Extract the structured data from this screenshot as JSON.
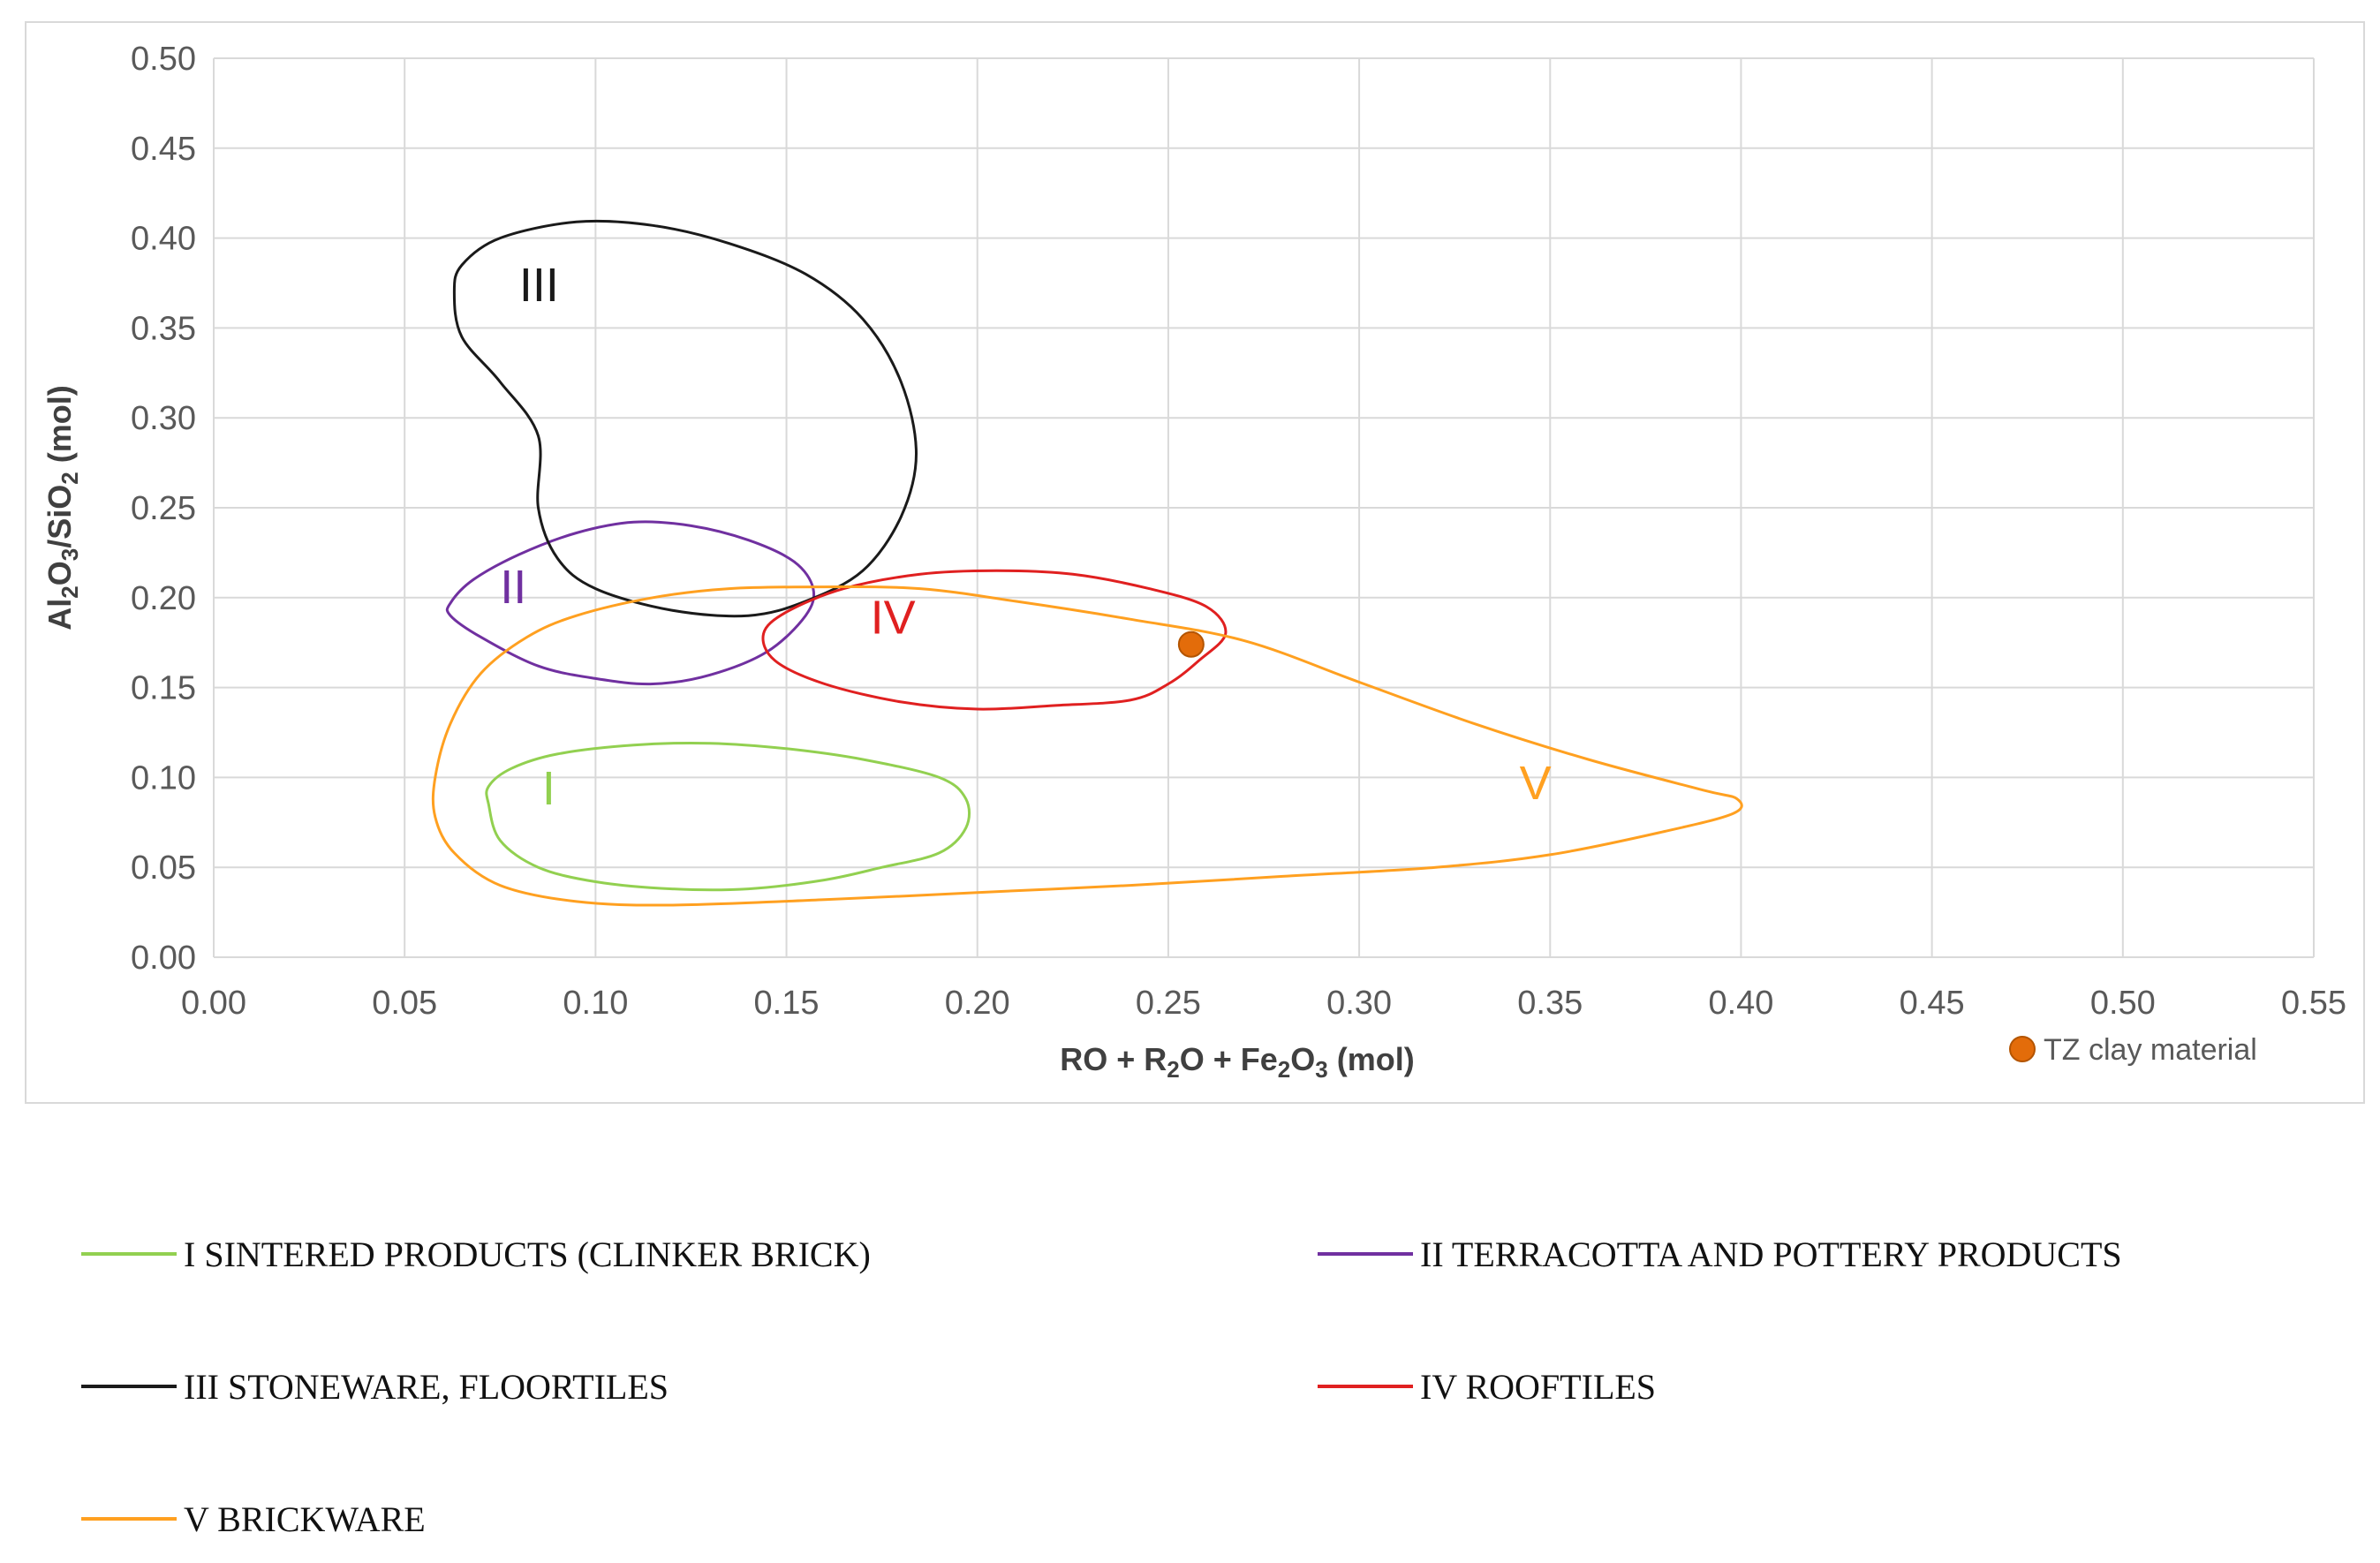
{
  "chart_data": {
    "type": "scatter",
    "xlabel": {
      "base": "RO + R",
      "sub1": "2",
      "mid": "O + Fe",
      "sub2": "2",
      "mid2": "O",
      "sub3": "3",
      "tail": " (mol)"
    },
    "ylabel": {
      "p1": "Al",
      "s1": "2",
      "p2": "O",
      "s2": "3",
      "p3": "/SiO",
      "s3": "2",
      "p4": " (mol)"
    },
    "xlim": [
      0,
      0.55
    ],
    "ylim": [
      0,
      0.5
    ],
    "xticks": [
      "0.00",
      "0.05",
      "0.10",
      "0.15",
      "0.20",
      "0.25",
      "0.30",
      "0.35",
      "0.40",
      "0.45",
      "0.50",
      "0.55"
    ],
    "yticks": [
      "0.00",
      "0.05",
      "0.10",
      "0.15",
      "0.20",
      "0.25",
      "0.30",
      "0.35",
      "0.40",
      "0.45",
      "0.50"
    ],
    "grid": true,
    "regions": [
      {
        "label": "I",
        "color": "#92d050",
        "label_pos": [
          0.086,
          0.085
        ],
        "points": [
          [
            0.072,
            0.085
          ],
          [
            0.075,
            0.065
          ],
          [
            0.085,
            0.05
          ],
          [
            0.1,
            0.042
          ],
          [
            0.12,
            0.038
          ],
          [
            0.14,
            0.038
          ],
          [
            0.16,
            0.043
          ],
          [
            0.175,
            0.05
          ],
          [
            0.19,
            0.058
          ],
          [
            0.197,
            0.072
          ],
          [
            0.197,
            0.088
          ],
          [
            0.19,
            0.1
          ],
          [
            0.17,
            0.11
          ],
          [
            0.15,
            0.116
          ],
          [
            0.13,
            0.119
          ],
          [
            0.11,
            0.118
          ],
          [
            0.09,
            0.113
          ],
          [
            0.078,
            0.105
          ],
          [
            0.072,
            0.095
          ]
        ]
      },
      {
        "label": "II",
        "color": "#7030a0",
        "label_pos": [
          0.075,
          0.197
        ],
        "points": [
          [
            0.062,
            0.197
          ],
          [
            0.068,
            0.21
          ],
          [
            0.08,
            0.224
          ],
          [
            0.095,
            0.236
          ],
          [
            0.11,
            0.242
          ],
          [
            0.125,
            0.24
          ],
          [
            0.14,
            0.232
          ],
          [
            0.152,
            0.22
          ],
          [
            0.157,
            0.205
          ],
          [
            0.155,
            0.19
          ],
          [
            0.145,
            0.17
          ],
          [
            0.13,
            0.157
          ],
          [
            0.115,
            0.152
          ],
          [
            0.1,
            0.155
          ],
          [
            0.085,
            0.162
          ],
          [
            0.07,
            0.178
          ],
          [
            0.062,
            0.19
          ]
        ]
      },
      {
        "label": "III",
        "color": "#1a1a1a",
        "label_pos": [
          0.08,
          0.365
        ],
        "points": [
          [
            0.063,
            0.37
          ],
          [
            0.065,
            0.385
          ],
          [
            0.075,
            0.4
          ],
          [
            0.095,
            0.409
          ],
          [
            0.115,
            0.407
          ],
          [
            0.135,
            0.397
          ],
          [
            0.155,
            0.38
          ],
          [
            0.17,
            0.355
          ],
          [
            0.18,
            0.32
          ],
          [
            0.184,
            0.28
          ],
          [
            0.18,
            0.245
          ],
          [
            0.17,
            0.215
          ],
          [
            0.155,
            0.198
          ],
          [
            0.14,
            0.19
          ],
          [
            0.12,
            0.193
          ],
          [
            0.1,
            0.205
          ],
          [
            0.09,
            0.222
          ],
          [
            0.085,
            0.25
          ],
          [
            0.085,
            0.29
          ],
          [
            0.075,
            0.32
          ],
          [
            0.065,
            0.345
          ]
        ]
      },
      {
        "label": "IV",
        "color": "#e02020",
        "label_pos": [
          0.172,
          0.18
        ],
        "points": [
          [
            0.144,
            0.18
          ],
          [
            0.15,
            0.192
          ],
          [
            0.165,
            0.205
          ],
          [
            0.185,
            0.213
          ],
          [
            0.205,
            0.215
          ],
          [
            0.225,
            0.213
          ],
          [
            0.245,
            0.205
          ],
          [
            0.26,
            0.195
          ],
          [
            0.265,
            0.18
          ],
          [
            0.258,
            0.165
          ],
          [
            0.25,
            0.152
          ],
          [
            0.24,
            0.143
          ],
          [
            0.22,
            0.14
          ],
          [
            0.2,
            0.138
          ],
          [
            0.18,
            0.142
          ],
          [
            0.16,
            0.152
          ],
          [
            0.147,
            0.165
          ]
        ]
      },
      {
        "label": "V",
        "color": "#ffa020",
        "label_pos": [
          0.342,
          0.088
        ],
        "points": [
          [
            0.058,
            0.1
          ],
          [
            0.062,
            0.13
          ],
          [
            0.07,
            0.158
          ],
          [
            0.082,
            0.178
          ],
          [
            0.095,
            0.19
          ],
          [
            0.115,
            0.2
          ],
          [
            0.135,
            0.205
          ],
          [
            0.16,
            0.206
          ],
          [
            0.185,
            0.205
          ],
          [
            0.21,
            0.198
          ],
          [
            0.24,
            0.188
          ],
          [
            0.27,
            0.176
          ],
          [
            0.3,
            0.153
          ],
          [
            0.33,
            0.13
          ],
          [
            0.36,
            0.11
          ],
          [
            0.39,
            0.093
          ],
          [
            0.399,
            0.088
          ],
          [
            0.398,
            0.08
          ],
          [
            0.38,
            0.07
          ],
          [
            0.35,
            0.057
          ],
          [
            0.32,
            0.05
          ],
          [
            0.28,
            0.045
          ],
          [
            0.24,
            0.04
          ],
          [
            0.2,
            0.036
          ],
          [
            0.16,
            0.032
          ],
          [
            0.12,
            0.029
          ],
          [
            0.095,
            0.031
          ],
          [
            0.075,
            0.04
          ],
          [
            0.063,
            0.058
          ],
          [
            0.058,
            0.078
          ]
        ]
      }
    ],
    "point": {
      "name": "TZ clay material",
      "x": 0.256,
      "y": 0.174,
      "color": "#e36c0a"
    },
    "legend_position": "bottom-right"
  },
  "legend": {
    "items": [
      {
        "label": "I SINTERED PRODUCTS (CLINKER BRICK)",
        "color": "#92d050"
      },
      {
        "label": "II TERRACOTTA AND POTTERY PRODUCTS",
        "color": "#7030a0"
      },
      {
        "label": "III STONEWARE, FLOORTILES",
        "color": "#1a1a1a"
      },
      {
        "label": "IV ROOFTILES",
        "color": "#e02020"
      },
      {
        "label": "V BRICKWARE",
        "color": "#ffa020"
      }
    ]
  },
  "colors": {
    "grid": "#d9d9d9",
    "tick_text": "#595959",
    "axis_title": "#404040"
  }
}
